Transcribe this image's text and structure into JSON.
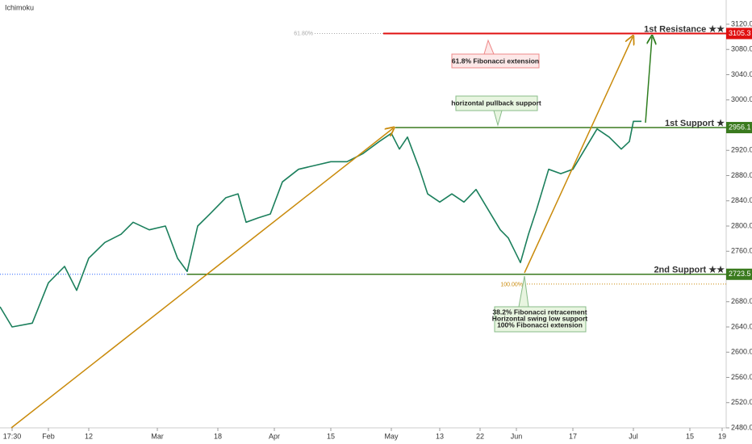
{
  "chart_data": {
    "type": "line",
    "title": "Ichimoku",
    "color": "#1b7f5c",
    "x": [
      0,
      3,
      8,
      12,
      16,
      19,
      22,
      26,
      30,
      33,
      37,
      41,
      44,
      46.4,
      49,
      52,
      56,
      59,
      61,
      64,
      67,
      70,
      74,
      78,
      82,
      86,
      90,
      94,
      97,
      99,
      101,
      104,
      106,
      109,
      112,
      115,
      118,
      121,
      124,
      126,
      129,
      131,
      133,
      136,
      139,
      142,
      145,
      148,
      151,
      154,
      156,
      157,
      159
    ],
    "values": [
      2672,
      2640,
      2646,
      2710,
      2736,
      2698,
      2749,
      2774,
      2787,
      2806,
      2794,
      2800,
      2749,
      2728,
      2800,
      2819,
      2845,
      2851,
      2806,
      2813,
      2819,
      2870,
      2890,
      2896,
      2902,
      2902,
      2915,
      2934,
      2947,
      2922,
      2941,
      2890,
      2851,
      2838,
      2851,
      2838,
      2858,
      2826,
      2794,
      2781,
      2742,
      2787,
      2826,
      2890,
      2883,
      2890,
      2922,
      2954,
      2941,
      2922,
      2934,
      2966,
      2966
    ],
    "xlim": [
      0,
      180
    ],
    "ylim": [
      2480,
      3120
    ],
    "xticks": [
      {
        "value": 3,
        "label": "17:30"
      },
      {
        "value": 12,
        "label": "Feb"
      },
      {
        "value": 22,
        "label": "12"
      },
      {
        "value": 39,
        "label": "Mar"
      },
      {
        "value": 54,
        "label": "18"
      },
      {
        "value": 68,
        "label": "Apr"
      },
      {
        "value": 82,
        "label": "15"
      },
      {
        "value": 97,
        "label": "May"
      },
      {
        "value": 109,
        "label": "13"
      },
      {
        "value": 119,
        "label": "22"
      },
      {
        "value": 128,
        "label": "Jun"
      },
      {
        "value": 142,
        "label": "17"
      },
      {
        "value": 157,
        "label": "Jul"
      },
      {
        "value": 171,
        "label": "15"
      },
      {
        "value": 179,
        "label": "19"
      }
    ],
    "yticks": [
      {
        "value": 2480,
        "label": "2480.0"
      },
      {
        "value": 2520,
        "label": "2520.0"
      },
      {
        "value": 2560,
        "label": "2560.0"
      },
      {
        "value": 2600,
        "label": "2600.0"
      },
      {
        "value": 2640,
        "label": "2640.0"
      },
      {
        "value": 2680,
        "label": "2680.0"
      },
      {
        "value": 2760,
        "label": "2760.0"
      },
      {
        "value": 2800,
        "label": "2800.0"
      },
      {
        "value": 2840,
        "label": "2840.0"
      },
      {
        "value": 2880,
        "label": "2880.0"
      },
      {
        "value": 2920,
        "label": "2920.0"
      },
      {
        "value": 3000,
        "label": "3000.0"
      },
      {
        "value": 3040,
        "label": "3040.0"
      },
      {
        "value": 3080,
        "label": "3080.0"
      },
      {
        "value": 3120,
        "label": "3120.0"
      }
    ],
    "levels": [
      {
        "name": "1st Resistance ★★",
        "value": 3105.3,
        "color": "#e01010",
        "from": 95
      },
      {
        "name": "1st Support ★",
        "value": 2956.1,
        "color": "#3a7a1e",
        "from": 98
      },
      {
        "name": "2nd Support ★★",
        "value": 2723.5,
        "color": "#3a7a1e",
        "from": 46.4
      }
    ],
    "fib_labels": [
      {
        "label": "61.80%",
        "value": 3105.3
      },
      {
        "label": "100.00%",
        "value": 2708
      }
    ],
    "callouts": [
      "61.8% Fibonacci extension",
      "horizontal pullback support",
      [
        "38.2% Fibonacci retracement",
        "Horizontal swing low support",
        "100% Fibonacci extension"
      ]
    ]
  }
}
